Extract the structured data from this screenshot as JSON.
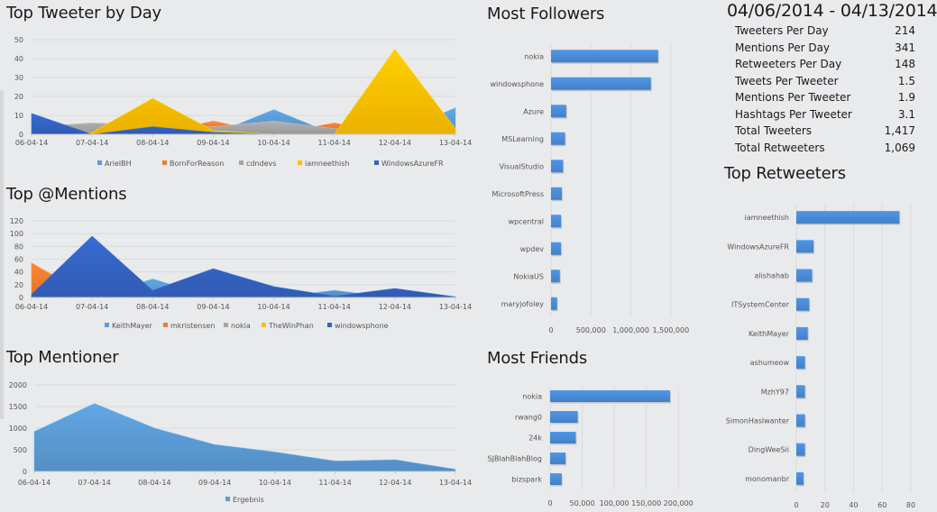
{
  "date_range": "04/06/2014 - 04/13/2014",
  "stats": [
    {
      "label": "Tweeters Per Day",
      "value": "214"
    },
    {
      "label": "Mentions Per Day",
      "value": "341"
    },
    {
      "label": "Retweeters Per Day",
      "value": "148"
    },
    {
      "label": "Tweets Per Tweeter",
      "value": "1.5"
    },
    {
      "label": "Mentions Per Tweeter",
      "value": "1.9"
    },
    {
      "label": "Hashtags Per Tweeter",
      "value": "3.1"
    },
    {
      "label": "Total Tweeters",
      "value": "1,417"
    },
    {
      "label": "Total Retweeters",
      "value": "1,069"
    }
  ],
  "colors": {
    "light_blue": "#5b9bd5",
    "orange": "#ed7d31",
    "gray": "#a5a5a5",
    "gold": "#ffc000",
    "dark_blue": "#3463c2",
    "bar": "#4a8bd6"
  },
  "chart_data": [
    {
      "id": "top_tweeter",
      "type": "area",
      "title": "Top Tweeter by Day",
      "categories": [
        "06-04-14",
        "07-04-14",
        "08-04-14",
        "09-04-14",
        "10-04-14",
        "11-04-14",
        "12-04-14",
        "13-04-14"
      ],
      "ylim": [
        0,
        50
      ],
      "yticks": [
        0,
        10,
        20,
        30,
        40,
        50
      ],
      "grid": true,
      "legend": "bottom",
      "series": [
        {
          "name": "ArielBH",
          "color": "#5b9bd5",
          "values": [
            0,
            0,
            0,
            0,
            13,
            0,
            0,
            14
          ]
        },
        {
          "name": "BornForReason",
          "color": "#ed7d31",
          "values": [
            0,
            0,
            0,
            7,
            0,
            6,
            0,
            0
          ]
        },
        {
          "name": "cdndevs",
          "color": "#a5a5a5",
          "values": [
            4,
            6,
            5,
            4,
            7,
            3,
            0,
            0
          ]
        },
        {
          "name": "iamneethish",
          "color": "#ffc000",
          "values": [
            0,
            1,
            19,
            2,
            0,
            0,
            45,
            3
          ]
        },
        {
          "name": "WindowsAzureFR",
          "color": "#3463c2",
          "values": [
            11,
            0,
            4,
            1,
            0,
            0,
            0,
            0
          ]
        }
      ]
    },
    {
      "id": "top_mentions",
      "type": "area",
      "title": "Top @Mentions",
      "categories": [
        "06-04-14",
        "07-04-14",
        "08-04-14",
        "09-04-14",
        "10-04-14",
        "11-04-14",
        "12-04-14",
        "13-04-14"
      ],
      "ylim": [
        0,
        120
      ],
      "yticks": [
        0,
        20,
        40,
        60,
        80,
        100,
        120
      ],
      "grid": true,
      "legend": "bottom",
      "series": [
        {
          "name": "KeithMayer",
          "color": "#5b9bd5",
          "values": [
            0,
            0,
            29,
            0,
            0,
            11,
            0,
            0
          ]
        },
        {
          "name": "mkristensen",
          "color": "#ed7d31",
          "values": [
            54,
            0,
            0,
            0,
            0,
            0,
            0,
            0
          ]
        },
        {
          "name": "nokia",
          "color": "#a5a5a5",
          "values": [
            0,
            0,
            0,
            0,
            0,
            0,
            0,
            0
          ]
        },
        {
          "name": "TheWinPhan",
          "color": "#ffc000",
          "values": [
            0,
            0,
            0,
            0,
            0,
            0,
            0,
            0
          ]
        },
        {
          "name": "windowsphone",
          "color": "#3463c2",
          "values": [
            5,
            96,
            11,
            45,
            17,
            2,
            14,
            1
          ]
        }
      ]
    },
    {
      "id": "top_mentioner",
      "type": "area",
      "title": "Top Mentioner",
      "categories": [
        "06-04-14",
        "07-04-14",
        "08-04-14",
        "09-04-14",
        "10-04-14",
        "11-04-14",
        "12-04-14",
        "13-04-14"
      ],
      "ylim": [
        0,
        2000
      ],
      "yticks": [
        0,
        500,
        1000,
        1500,
        2000
      ],
      "grid": true,
      "legend": "bottom",
      "series": [
        {
          "name": "Ergebnis",
          "color": "#5b9bd5",
          "values": [
            920,
            1570,
            1000,
            620,
            450,
            240,
            270,
            50
          ]
        }
      ]
    },
    {
      "id": "most_followers",
      "type": "bar",
      "orientation": "horizontal",
      "title": "Most Followers",
      "categories": [
        "nokia",
        "windowsphone",
        "Azure",
        "MSLearning",
        "VisualStudio",
        "MicrosoftPress",
        "wpcentral",
        "wpdev",
        "NokiaUS",
        "maryjofoley"
      ],
      "values": [
        1340000,
        1250000,
        190000,
        175000,
        150000,
        135000,
        125000,
        125000,
        110000,
        75000
      ],
      "xlim": [
        0,
        1750000
      ],
      "xticks": [
        0,
        500000,
        1000000,
        1500000
      ],
      "xtick_labels": [
        "0",
        "500,000",
        "1,000,000",
        "1,500,000"
      ],
      "grid": true
    },
    {
      "id": "most_friends",
      "type": "bar",
      "orientation": "horizontal",
      "title": "Most Friends",
      "categories": [
        "nokia",
        "rwang0",
        "24k",
        "SJBlahBlahBlog",
        "bizspark"
      ],
      "values": [
        187000,
        43000,
        40000,
        24000,
        18000
      ],
      "xlim": [
        0,
        225000
      ],
      "xticks": [
        0,
        50000,
        100000,
        150000,
        200000
      ],
      "xtick_labels": [
        "0",
        "50,000",
        "100,000",
        "150,000",
        "200,000"
      ],
      "grid": true
    },
    {
      "id": "top_retweeters",
      "type": "bar",
      "orientation": "horizontal",
      "title": "Top Retweeters",
      "categories": [
        "iamneethish",
        "WindowsAzureFR",
        "alishahab",
        "ITSystemCenter",
        "KeithMayer",
        "ashumeow",
        "MzhY97",
        "SimonHaslwanter",
        "DingWeeSii",
        "monomanbr"
      ],
      "values": [
        72,
        12,
        11,
        9,
        8,
        6,
        6,
        6,
        6,
        5
      ],
      "xlim": [
        0,
        80
      ],
      "xticks": [
        0,
        20,
        40,
        60,
        80
      ],
      "xtick_labels": [
        "0",
        "20",
        "40",
        "60",
        "80"
      ],
      "grid": true
    }
  ]
}
